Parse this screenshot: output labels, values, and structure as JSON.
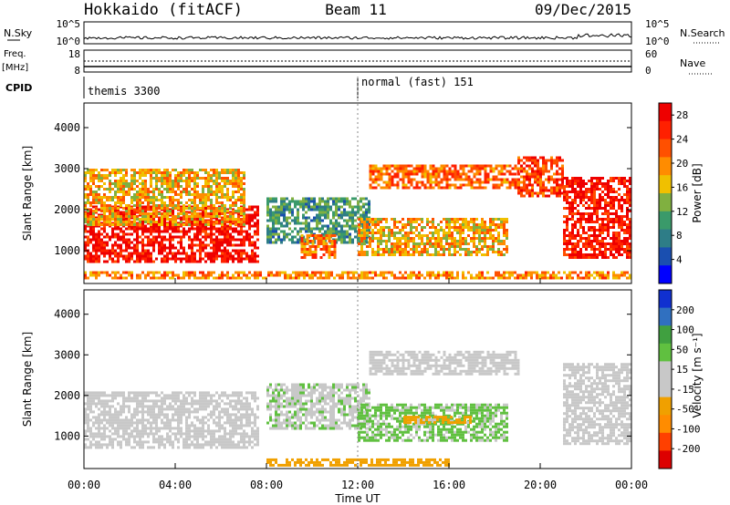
{
  "header": {
    "station": "Hokkaido (fitACF)",
    "beam": "Beam 11",
    "date": "09/Dec/2015"
  },
  "top_panels": {
    "nsky_label": "N.Sky",
    "nsearch_label": "N.Search",
    "noise_ticks": [
      "10^5",
      "10^0"
    ],
    "freq_label": "Freq.",
    "freq_unit": "[MHz]",
    "freq_ticks": [
      "18",
      "8"
    ],
    "nave_label": "Nave",
    "nave_ticks": [
      "60",
      "0"
    ],
    "cpid_label": "CPID",
    "cpid_segments": [
      {
        "name": "themis 3300",
        "start_hour": 0,
        "end_hour": 12
      },
      {
        "name": "normal (fast) 151",
        "start_hour": 12,
        "end_hour": 24
      }
    ]
  },
  "chart_data": [
    {
      "type": "heatmap",
      "name": "power",
      "ylabel": "Slant Range [km]",
      "xlabel": "",
      "xlim": [
        0,
        24
      ],
      "ylim": [
        200,
        4600
      ],
      "yticks": [
        1000,
        2000,
        3000,
        4000
      ],
      "colorbar": {
        "label": "Power [dB]",
        "ticks": [
          "4",
          "8",
          "12",
          "16",
          "20",
          "24",
          "28"
        ],
        "range": [
          0,
          30
        ],
        "colors": [
          "#0000ff",
          "#1a4fb0",
          "#2e7d87",
          "#3a9a6a",
          "#80b040",
          "#f0c000",
          "#ff8c00",
          "#ff5000",
          "#ff2000",
          "#ee0000"
        ]
      },
      "regions": [
        {
          "t": [
            0.0,
            7.6
          ],
          "r": [
            700,
            2100
          ],
          "value": 28
        },
        {
          "t": [
            0.0,
            7.0
          ],
          "r": [
            1600,
            3000
          ],
          "value": 18
        },
        {
          "t": [
            8.0,
            12.5
          ],
          "r": [
            1200,
            2300
          ],
          "value": 10
        },
        {
          "t": [
            9.5,
            11.0
          ],
          "r": [
            800,
            1400
          ],
          "value": 22
        },
        {
          "t": [
            12.5,
            19.0
          ],
          "r": [
            2500,
            3100
          ],
          "value": 22
        },
        {
          "t": [
            12.0,
            18.5
          ],
          "r": [
            900,
            1800
          ],
          "value": 18
        },
        {
          "t": [
            19.0,
            21.0
          ],
          "r": [
            2300,
            3300
          ],
          "value": 24
        },
        {
          "t": [
            21.0,
            24.0
          ],
          "r": [
            800,
            2800
          ],
          "value": 27
        },
        {
          "t": [
            0.0,
            24.0
          ],
          "r": [
            300,
            500
          ],
          "value": 20
        }
      ]
    },
    {
      "type": "heatmap",
      "name": "velocity",
      "ylabel": "Slant Range [km]",
      "xlabel": "Time UT",
      "xlim": [
        0,
        24
      ],
      "ylim": [
        200,
        4600
      ],
      "xticks": [
        "00:00",
        "04:00",
        "08:00",
        "12:00",
        "16:00",
        "20:00",
        "00:00"
      ],
      "yticks": [
        1000,
        2000,
        3000,
        4000
      ],
      "colorbar": {
        "label": "Velocity [m s⁻¹]",
        "ticks": [
          "200",
          "100",
          "50",
          "15",
          "-15",
          "-50",
          "-100",
          "-200"
        ],
        "range": [
          -250,
          250
        ],
        "colors": [
          "#dd0000",
          "#ff4000",
          "#ff8c00",
          "#f0a000",
          "#c8c8c8",
          "#c8c8c8",
          "#60c040",
          "#40a040",
          "#3070c0",
          "#1030d0"
        ]
      },
      "regions": [
        {
          "t": [
            0.0,
            7.6
          ],
          "r": [
            700,
            2100
          ],
          "value": 0
        },
        {
          "t": [
            8.0,
            12.5
          ],
          "r": [
            1200,
            2300
          ],
          "value": 40
        },
        {
          "t": [
            12.5,
            19.0
          ],
          "r": [
            2500,
            3100
          ],
          "value": 5
        },
        {
          "t": [
            12.0,
            18.5
          ],
          "r": [
            900,
            1800
          ],
          "value": 60
        },
        {
          "t": [
            14.0,
            17.0
          ],
          "r": [
            1300,
            1500
          ],
          "value": -60
        },
        {
          "t": [
            21.0,
            24.0
          ],
          "r": [
            800,
            2800
          ],
          "value": 0
        },
        {
          "t": [
            8.0,
            16.0
          ],
          "r": [
            300,
            450
          ],
          "value": -70
        }
      ]
    }
  ]
}
